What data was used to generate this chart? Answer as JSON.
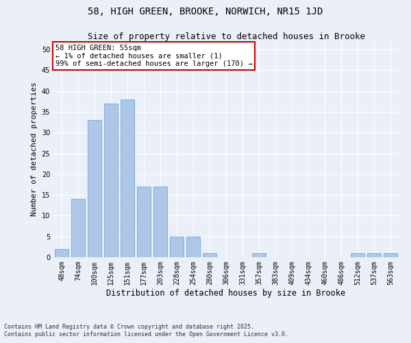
{
  "title_line1": "58, HIGH GREEN, BROOKE, NORWICH, NR15 1JD",
  "title_line2": "Size of property relative to detached houses in Brooke",
  "xlabel": "Distribution of detached houses by size in Brooke",
  "ylabel": "Number of detached properties",
  "categories": [
    "48sqm",
    "74sqm",
    "100sqm",
    "125sqm",
    "151sqm",
    "177sqm",
    "203sqm",
    "228sqm",
    "254sqm",
    "280sqm",
    "306sqm",
    "331sqm",
    "357sqm",
    "383sqm",
    "409sqm",
    "434sqm",
    "460sqm",
    "486sqm",
    "512sqm",
    "537sqm",
    "563sqm"
  ],
  "values": [
    2,
    14,
    33,
    37,
    38,
    17,
    17,
    5,
    5,
    1,
    0,
    0,
    1,
    0,
    0,
    0,
    0,
    0,
    1,
    1,
    1
  ],
  "bar_color": "#aec6e8",
  "bar_edge_color": "#6aaad4",
  "annotation_box_text": "58 HIGH GREEN: 55sqm\n← 1% of detached houses are smaller (1)\n99% of semi-detached houses are larger (170) →",
  "annotation_box_color": "#cc0000",
  "ylim": [
    0,
    52
  ],
  "yticks": [
    0,
    5,
    10,
    15,
    20,
    25,
    30,
    35,
    40,
    45,
    50
  ],
  "background_color": "#eaeff8",
  "footer_line1": "Contains HM Land Registry data © Crown copyright and database right 2025.",
  "footer_line2": "Contains public sector information licensed under the Open Government Licence v3.0.",
  "title_fontsize": 10,
  "subtitle_fontsize": 9,
  "ylabel_fontsize": 8,
  "xlabel_fontsize": 8.5,
  "tick_fontsize": 7,
  "annotation_fontsize": 7.5,
  "footer_fontsize": 6
}
